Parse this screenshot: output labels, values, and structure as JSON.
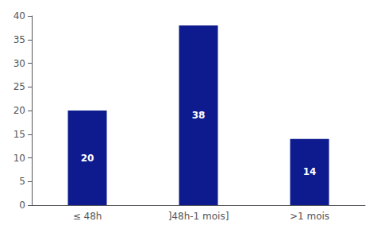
{
  "chart_data": {
    "type": "bar",
    "categories": [
      "≤ 48h",
      "]48h-1 mois]",
      ">1 mois"
    ],
    "values": [
      20,
      38,
      14
    ],
    "color": "#0D1B8E",
    "ylim": [
      0,
      40
    ],
    "yticks": [
      0,
      5,
      10,
      15,
      20,
      25,
      30,
      35,
      40
    ],
    "grid": false,
    "data_labels": true
  }
}
